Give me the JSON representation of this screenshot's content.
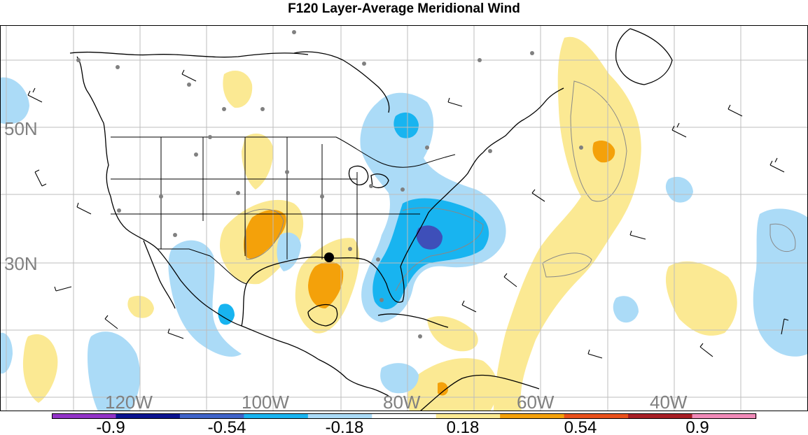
{
  "title": "F120 Layer-Average Meridional Wind",
  "map": {
    "latitude_labels": [
      "50N",
      "30N"
    ],
    "longitude_labels": [
      "120W",
      "100W",
      "80W",
      "60W",
      "40W"
    ],
    "positive_fill_colors": [
      "#fbe993",
      "#f4a10a",
      "#e9501b"
    ],
    "negative_fill_colors": [
      "#abdbf7",
      "#18b4f0",
      "#3e4fb9"
    ]
  },
  "colorbar": {
    "labels": [
      "-0.9",
      "-0.54",
      "-0.18",
      "0.18",
      "0.54",
      "0.9"
    ],
    "colors": [
      "#9233c7",
      "#0a128f",
      "#3e63c9",
      "#18b4f0",
      "#abdbf7",
      "#ffffff",
      "#fbe993",
      "#f4a10a",
      "#e9501b",
      "#a61d24",
      "#f08ab8"
    ]
  }
}
